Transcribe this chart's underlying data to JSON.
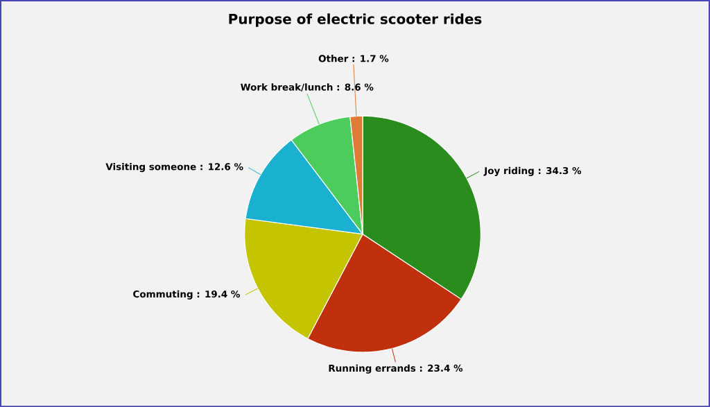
{
  "chart_data": {
    "type": "pie",
    "title": "Purpose of electric scooter rides",
    "categories": [
      "Joy riding",
      "Running errands",
      "Commuting",
      "Visiting someone",
      "Work break/lunch",
      "Other"
    ],
    "values": [
      34.3,
      23.4,
      19.4,
      12.6,
      8.6,
      1.7
    ],
    "colors": [
      "#2a8c1c",
      "#c0300c",
      "#c4c400",
      "#1ab0d0",
      "#4ccc5c",
      "#e07a38"
    ],
    "value_labels": [
      ": 34.3 %",
      ": 23.4 %",
      ": 19.4 %",
      ": 12.6 %",
      ": 8.6 %",
      ": 1.7 %"
    ]
  }
}
